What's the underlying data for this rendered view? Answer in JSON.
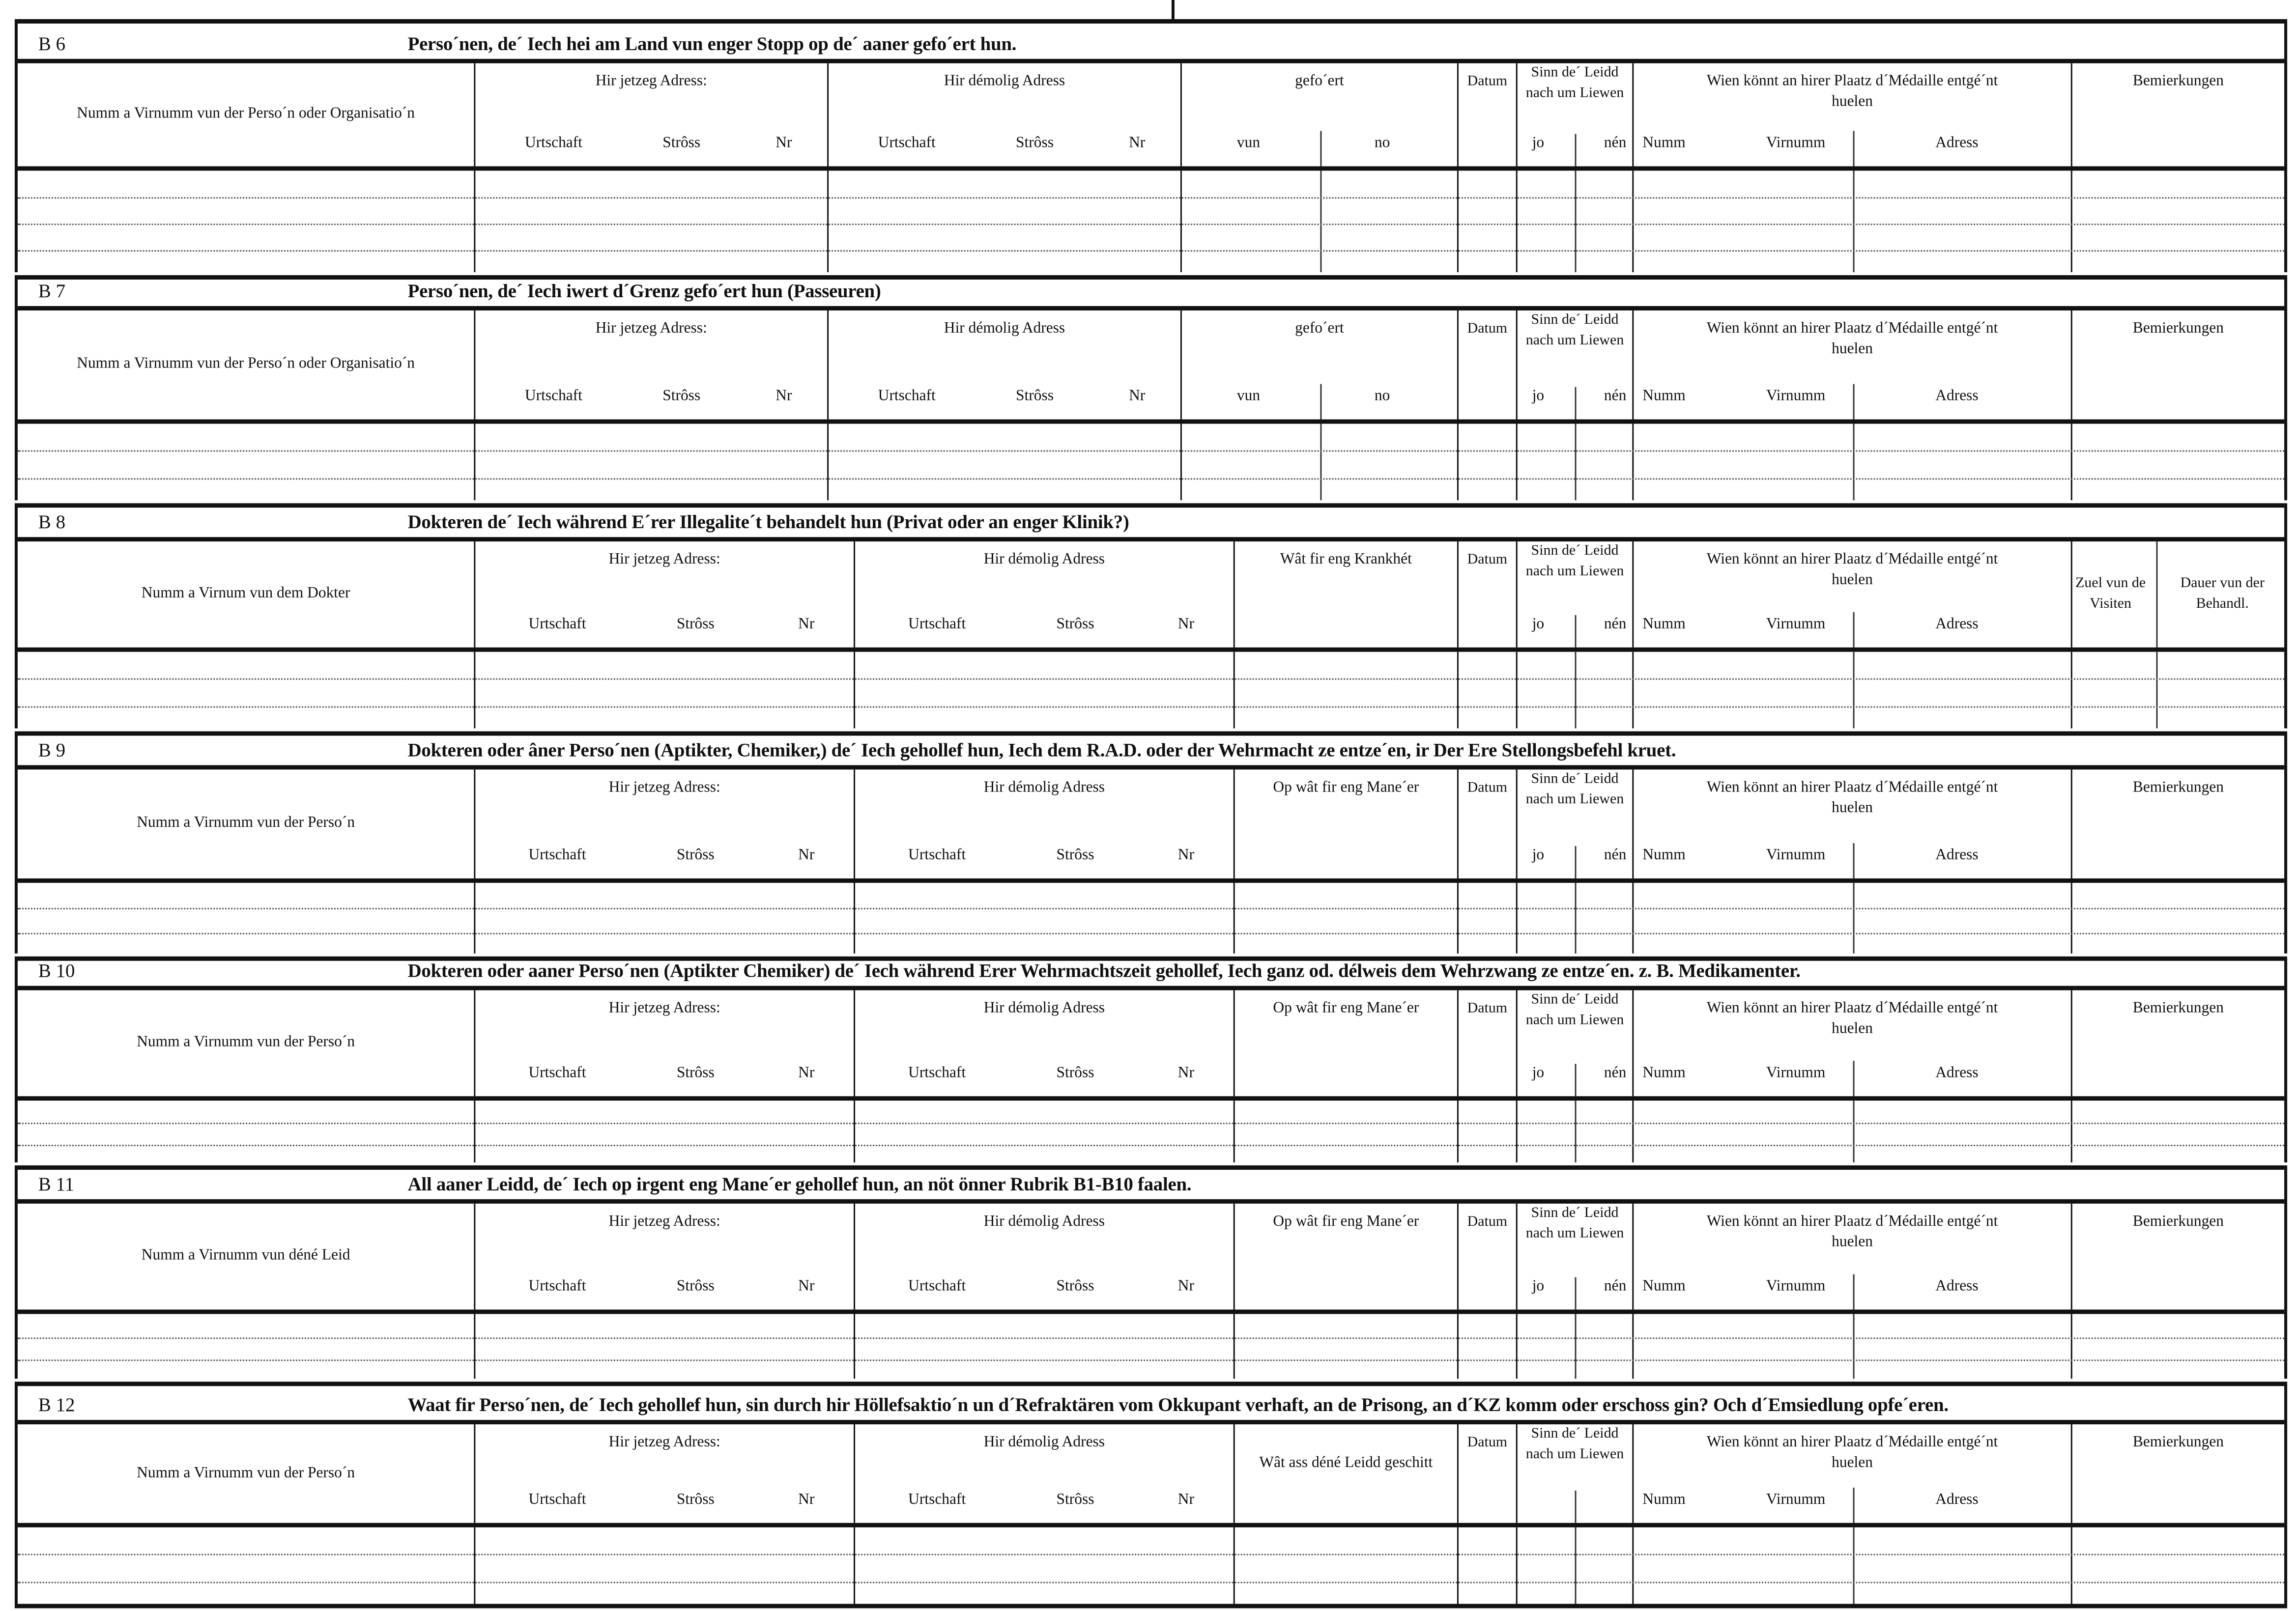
{
  "header": {
    "current_address": "Hir jetzeg Adress:",
    "past_address": "Hir démolig Adress",
    "locality": "Urtschaft",
    "street": "Strôss",
    "number": "Nr",
    "date": "Datum",
    "alive": "Sinn de´ Leidd nach um Liewen",
    "yes": "jo",
    "no": "nén",
    "medal": "Wien könnt an hirer Plaatz d´Médaille entgé´nt huelen",
    "surname": "Numm",
    "firstname": "Virnumm",
    "address": "Adress",
    "remarks": "Bemierkungen"
  },
  "sections": [
    {
      "code": "B 6",
      "title": "Perso´nen, de´ Iech hei am Land vun enger Stopp  op de´ aaner gefo´ert hun.",
      "name_label": "Numm a Virnumm vun der Perso´n oder Organisatio´n",
      "third_label": "gefo´ert",
      "third_sub": [
        "vun",
        "no"
      ],
      "show_yes_no": true
    },
    {
      "code": "B 7",
      "title": "Perso´nen, de´ Iech iwert d´Grenz gefo´ert hun (Passeuren)",
      "name_label": "Numm a Virnumm vun der Perso´n oder Organisatio´n",
      "third_label": "gefo´ert",
      "third_sub": [
        "vun",
        "no"
      ],
      "show_yes_no": true
    },
    {
      "code": "B 8",
      "title": "Dokteren de´ Iech während E´rer Illegalite´t behandelt hun (Privat oder an enger Klinik?)",
      "name_label": "Numm a Virnum vun dem Dokter",
      "third_label": "Wât fir eng Krankhét",
      "show_yes_no": true,
      "remarks_split": [
        "Zuel vun de Visiten",
        "Dauer vun der Behandl."
      ]
    },
    {
      "code": "B 9",
      "title": "Dokteren oder âner Perso´nen (Aptikter, Chemiker,) de´ Iech gehollef hun, Iech dem R.A.D. oder der Wehrmacht ze entze´en, ir Der Ere Stellongsbefehl kruet.",
      "name_label": "Numm a Virnumm vun der Perso´n",
      "third_label": "Op wât fir eng Mane´er",
      "show_yes_no": true
    },
    {
      "code": "B 10",
      "title": "Dokteren oder aaner Perso´nen (Aptikter Chemiker) de´ Iech während Erer Wehrmachtszeit gehollef, Iech ganz od. délweis dem Wehrzwang ze entze´en. z. B. Medikamenter.",
      "name_label": "Numm a Virnumm vun der Perso´n",
      "third_label": "Op wât fir eng Mane´er",
      "show_yes_no": true
    },
    {
      "code": "B 11",
      "title": "All aaner Leidd, de´ Iech op irgent eng Mane´er gehollef hun, an nöt önner Rubrik B1-B10 faalen.",
      "name_label": "Numm a Virnumm vun déné Leid",
      "third_label": "Op wât fir eng Mane´er",
      "show_yes_no": true
    },
    {
      "code": "B 12",
      "title": "Waat fir Perso´nen, de´ Iech gehollef hun, sin durch hir Höllefsaktio´n un d´Refraktären vom Okkupant verhaft, an de Prisong, an d´KZ komm oder  erschoss gin? Och d´Emsiedlung opfe´eren.",
      "name_label": "Numm a Virnumm vun der Perso´n",
      "third_label": "Wât ass déné Leidd geschitt",
      "show_yes_no": false
    }
  ]
}
